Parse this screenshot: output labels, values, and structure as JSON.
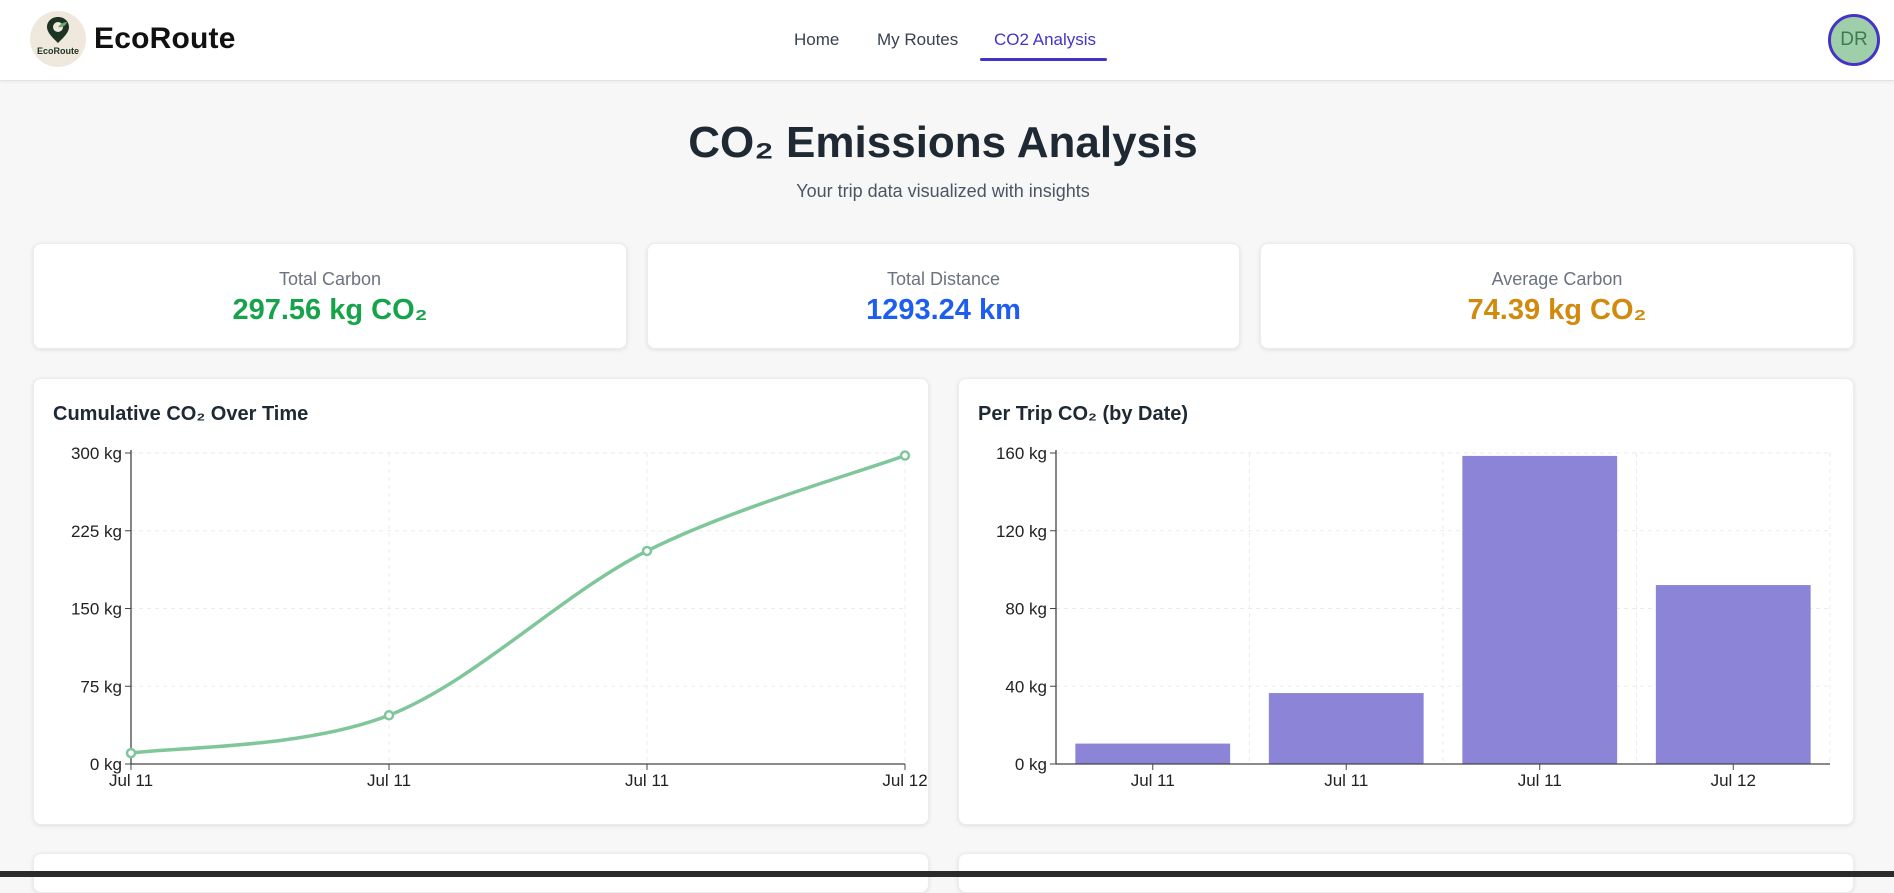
{
  "app": {
    "brand": "EcoRoute",
    "logo_text": "EcoRoute",
    "logo_icon": "leaf-pin-icon",
    "accent_color": "#4335c4"
  },
  "nav": {
    "items": [
      {
        "label": "Home",
        "active": false
      },
      {
        "label": "My Routes",
        "active": false
      },
      {
        "label": "CO2 Analysis",
        "active": true
      }
    ]
  },
  "user": {
    "initials": "DR"
  },
  "page": {
    "title": "CO₂ Emissions Analysis",
    "subtitle": "Your trip data visualized with insights"
  },
  "stats": [
    {
      "label": "Total Carbon",
      "value": "297.56 kg CO₂",
      "color": "#16a34a"
    },
    {
      "label": "Total Distance",
      "value": "1293.24 km",
      "color": "#1d5ef0"
    },
    {
      "label": "Average Carbon",
      "value": "74.39 kg CO₂",
      "color": "#d18a0e"
    }
  ],
  "charts": {
    "cumulative_title": "Cumulative CO₂ Over Time",
    "per_trip_title": "Per Trip CO₂ (by Date)"
  },
  "chart_data": [
    {
      "type": "line",
      "title": "Cumulative CO₂ Over Time",
      "x": [
        "Jul 11",
        "Jul 11",
        "Jul 11",
        "Jul 12"
      ],
      "values": [
        10.5,
        47.0,
        205.5,
        297.56
      ],
      "y_ticks": [
        "0 kg",
        "75 kg",
        "150 kg",
        "225 kg",
        "300 kg"
      ],
      "ylim": [
        0,
        300
      ],
      "grid": true,
      "color": "#7fc79b"
    },
    {
      "type": "bar",
      "title": "Per Trip CO₂ (by Date)",
      "categories": [
        "Jul 11",
        "Jul 11",
        "Jul 11",
        "Jul 12"
      ],
      "values": [
        10.5,
        36.5,
        158.5,
        92.06
      ],
      "y_ticks": [
        "0 kg",
        "40 kg",
        "80 kg",
        "120 kg",
        "160 kg"
      ],
      "ylim": [
        0,
        160
      ],
      "grid": true,
      "color": "#8b84d7"
    }
  ]
}
